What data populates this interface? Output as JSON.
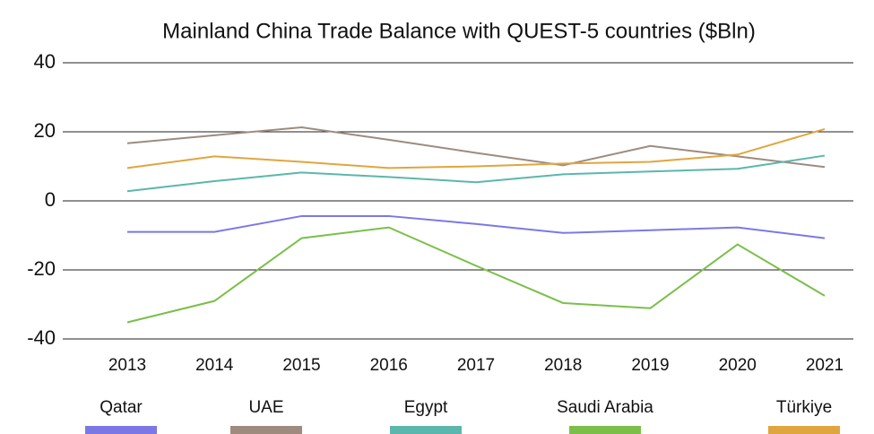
{
  "chart_data": {
    "type": "line",
    "title": "Mainland China Trade Balance with QUEST-5 countries ($Bln)",
    "categories": [
      "2013",
      "2014",
      "2015",
      "2016",
      "2017",
      "2018",
      "2019",
      "2020",
      "2021"
    ],
    "series": [
      {
        "name": "Qatar",
        "color": "#7b78e6",
        "values": [
          -9,
          -9,
          -4.4,
          -4.4,
          -6.7,
          -9.3,
          -8.5,
          -7.7,
          -10.8
        ]
      },
      {
        "name": "UAE",
        "color": "#9e8b7e",
        "values": [
          16.7,
          19,
          21.3,
          17.7,
          13.9,
          10.3,
          15.9,
          12.9,
          9.8
        ]
      },
      {
        "name": "Egypt",
        "color": "#5bb7ab",
        "values": [
          2.8,
          5.7,
          8.2,
          6.9,
          5.4,
          7.7,
          8.5,
          9.3,
          13.1
        ]
      },
      {
        "name": "Saudi Arabia",
        "color": "#7bbf4a",
        "values": [
          -35.2,
          -29,
          -10.8,
          -7.7,
          -18.8,
          -29.6,
          -31.1,
          -12.6,
          -27.5
        ]
      },
      {
        "name": "Türkiye",
        "color": "#dfa63f",
        "values": [
          9.5,
          12.9,
          11.3,
          9.5,
          10,
          10.8,
          11.3,
          13.4,
          20.8
        ]
      }
    ],
    "ylim": [
      -40,
      40
    ],
    "yticks": [
      -40,
      -20,
      0,
      20,
      40
    ],
    "grid": true,
    "legend": "bottom"
  }
}
